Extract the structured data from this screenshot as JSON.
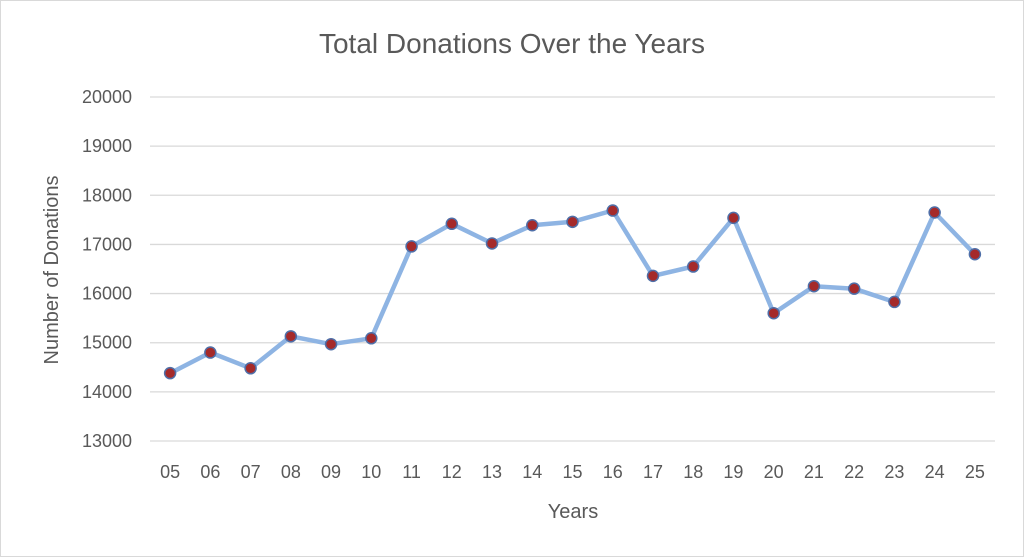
{
  "chart_data": {
    "type": "line",
    "title": "Total Donations Over the Years",
    "xlabel": "Years",
    "ylabel": "Number  of  Donations",
    "categories": [
      "05",
      "06",
      "07",
      "08",
      "09",
      "10",
      "11",
      "12",
      "13",
      "14",
      "15",
      "16",
      "17",
      "18",
      "19",
      "20",
      "21",
      "22",
      "23",
      "24",
      "25"
    ],
    "series": [
      {
        "values": [
          14380,
          14800,
          14480,
          15130,
          14970,
          15090,
          16960,
          17420,
          17020,
          17390,
          17460,
          17690,
          16360,
          16550,
          17540,
          15600,
          16150,
          16100,
          15830,
          17650,
          16800
        ]
      }
    ],
    "ylim": [
      13000,
      20000
    ],
    "yticks": [
      "13000",
      "14000",
      "15000",
      "16000",
      "17000",
      "18000",
      "19000",
      "20000"
    ],
    "grid": true,
    "legend": "none",
    "colors": {
      "line": "#8eb4e3",
      "marker_fill": "#a52a2a",
      "marker_stroke": "#4f6fa8"
    }
  }
}
